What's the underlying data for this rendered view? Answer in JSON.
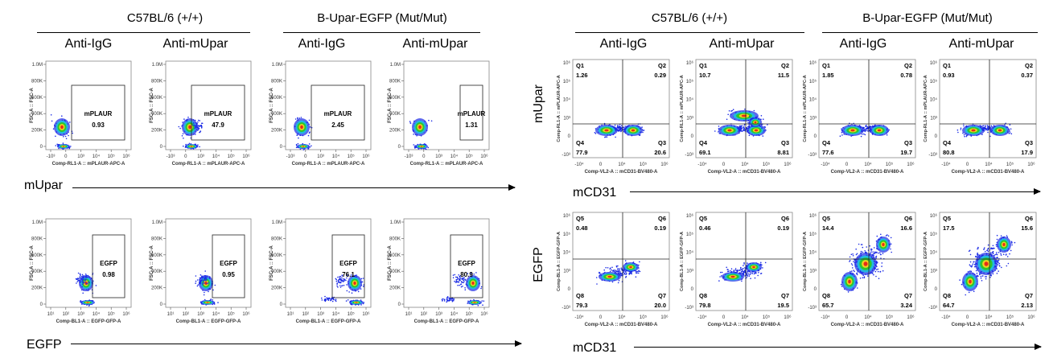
{
  "headers": {
    "left_wt": "C57BL/6 (+/+)",
    "left_mut": "B-Upar-EGFP (Mut/Mut)",
    "right_wt": "C57BL/6 (+/+)",
    "right_mut": "B-Upar-EGFP (Mut/Mut)"
  },
  "conditions": {
    "left": [
      "Anti-IgG",
      "Anti-mUpar",
      "Anti-IgG",
      "Anti-mUpar"
    ],
    "right": [
      "Anti-IgG",
      "Anti-mUpar",
      "Anti-IgG",
      "Anti-mUpar"
    ]
  },
  "axis_labels": {
    "left_row1": "mUpar",
    "left_row2": "EGFP",
    "right_row1_x": "mCD31",
    "right_row2_x": "mCD31",
    "right_row1_y": "mUpar",
    "right_row2_y": "EGFP"
  },
  "colors": {
    "dense": "#e52a1a",
    "mid": "#2cc82c",
    "sparse": "#1a2ae5"
  },
  "chart_data": [
    {
      "type": "scatter",
      "group": "left_row1",
      "xlabel": "Comp-RL1-A :: mPLAUR-APC-A",
      "ylabel": "FSC-A :: FSC-A",
      "x_ticks": [
        "-10³",
        "0",
        "10³",
        "10⁴",
        "10⁵",
        "10⁶"
      ],
      "y_ticks": [
        "0",
        "200K",
        "400K",
        "600K",
        "800K",
        "1.0M"
      ],
      "gate_name": "mPLAUR",
      "panels": [
        {
          "condition": "Anti-IgG",
          "gate_value": "0.93"
        },
        {
          "condition": "Anti-mUpar",
          "gate_value": "47.9"
        },
        {
          "condition": "Anti-IgG",
          "gate_value": "2.45"
        },
        {
          "condition": "Anti-mUpar",
          "gate_value": "1.31"
        }
      ]
    },
    {
      "type": "scatter",
      "group": "left_row2",
      "xlabel": "Comp-BL1-A :: EGFP-GFP-A",
      "ylabel": "FSC-A :: FSC-A",
      "x_ticks": [
        "10¹",
        "10²",
        "10³",
        "10⁴",
        "10⁵",
        "10⁶"
      ],
      "y_ticks": [
        "0",
        "200K",
        "400K",
        "600K",
        "800K",
        "1.0M"
      ],
      "gate_name": "EGFP",
      "panels": [
        {
          "condition": "Anti-IgG",
          "gate_value": "0.98"
        },
        {
          "condition": "Anti-mUpar",
          "gate_value": "0.95"
        },
        {
          "condition": "Anti-IgG",
          "gate_value": "76.1"
        },
        {
          "condition": "Anti-mUpar",
          "gate_value": "80.9"
        }
      ]
    },
    {
      "type": "scatter",
      "group": "right_row1",
      "xlabel": "Comp-VL2-A :: mCD31-BV480-A",
      "ylabel": "Comp-RL1-A :: mPLAUR-APC-A",
      "x_ticks": [
        "-10⁴",
        "0",
        "10⁴",
        "10⁵",
        "10⁶"
      ],
      "y_ticks": [
        "-10³",
        "0",
        "10³",
        "10⁴",
        "10⁵",
        "10⁶"
      ],
      "quadrants": [
        "Q1",
        "Q2",
        "Q3",
        "Q4"
      ],
      "panels": [
        {
          "condition": "Anti-IgG",
          "values": [
            "1.26",
            "0.29",
            "20.6",
            "77.9"
          ]
        },
        {
          "condition": "Anti-mUpar",
          "values": [
            "10.7",
            "11.5",
            "8.81",
            "69.1"
          ]
        },
        {
          "condition": "Anti-IgG",
          "values": [
            "1.85",
            "0.78",
            "19.7",
            "77.6"
          ]
        },
        {
          "condition": "Anti-mUpar",
          "values": [
            "0.93",
            "0.37",
            "17.9",
            "80.8"
          ]
        }
      ]
    },
    {
      "type": "scatter",
      "group": "right_row2",
      "xlabel": "Comp-VL2-A :: mCD31-BV480-A",
      "ylabel": "Comp-BL1-A :: EGFP-GFP-A",
      "x_ticks": [
        "-10⁴",
        "0",
        "10⁴",
        "10⁵",
        "10⁶"
      ],
      "y_ticks": [
        "-10³",
        "0",
        "10³",
        "10⁴",
        "10⁵",
        "10⁶"
      ],
      "quadrants": [
        "Q5",
        "Q6",
        "Q7",
        "Q8"
      ],
      "panels": [
        {
          "condition": "Anti-IgG",
          "values": [
            "0.48",
            "0.19",
            "20.0",
            "79.3"
          ]
        },
        {
          "condition": "Anti-mUpar",
          "values": [
            "0.46",
            "0.19",
            "19.5",
            "79.8"
          ]
        },
        {
          "condition": "Anti-IgG",
          "values": [
            "14.4",
            "16.6",
            "3.24",
            "65.7"
          ]
        },
        {
          "condition": "Anti-mUpar",
          "values": [
            "17.5",
            "15.6",
            "2.13",
            "64.7"
          ]
        }
      ]
    }
  ]
}
